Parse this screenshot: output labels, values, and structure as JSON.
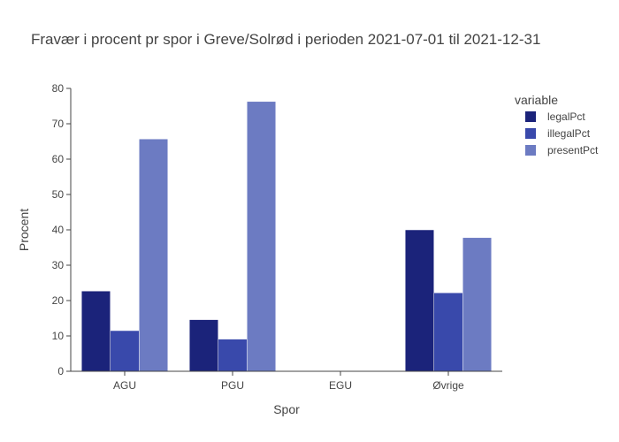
{
  "chart_data": {
    "type": "bar",
    "title": "Fravær i procent pr spor i Greve/Solrød i perioden 2021-07-01 til 2021-12-31",
    "xlabel": "Spor",
    "ylabel": "Procent",
    "categories": [
      "AGU",
      "PGU",
      "EGU",
      "Øvrige"
    ],
    "ylim": [
      0,
      80
    ],
    "yticks": [
      0,
      10,
      20,
      30,
      40,
      50,
      60,
      70,
      80
    ],
    "legend_title": "variable",
    "legend_position": "top-right",
    "grid": false,
    "series": [
      {
        "name": "legalPct",
        "color": "#1b237a",
        "values": [
          22.7,
          14.6,
          0,
          40.0
        ]
      },
      {
        "name": "illegalPct",
        "color": "#3949ab",
        "values": [
          11.5,
          9.1,
          0,
          22.2
        ]
      },
      {
        "name": "presentPct",
        "color": "#6c7bc2",
        "values": [
          65.7,
          76.3,
          0,
          37.8
        ]
      }
    ]
  }
}
